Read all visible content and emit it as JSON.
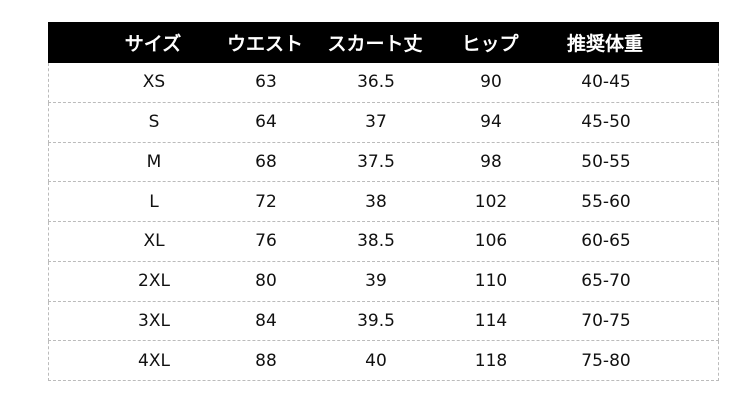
{
  "headers": [
    "サイズ",
    "ウエスト",
    "スカート丈",
    "ヒップ",
    "推奨体重"
  ],
  "rows": [
    [
      "XS",
      "63",
      "36.5",
      "90",
      "40-45"
    ],
    [
      "S",
      "64",
      "37",
      "94",
      "45-50"
    ],
    [
      "M",
      "68",
      "37.5",
      "98",
      "50-55"
    ],
    [
      "L",
      "72",
      "38",
      "102",
      "55-60"
    ],
    [
      "XL",
      "76",
      "38.5",
      "106",
      "60-65"
    ],
    [
      "2XL",
      "80",
      "39",
      "110",
      "65-70"
    ],
    [
      "3XL",
      "84",
      "39.5",
      "114",
      "70-75"
    ],
    [
      "4XL",
      "88",
      "40",
      "118",
      "75-80"
    ]
  ],
  "colors": {
    "header_bg": "#000000",
    "header_text": "#ffffff",
    "border": "#bbbbbb"
  }
}
